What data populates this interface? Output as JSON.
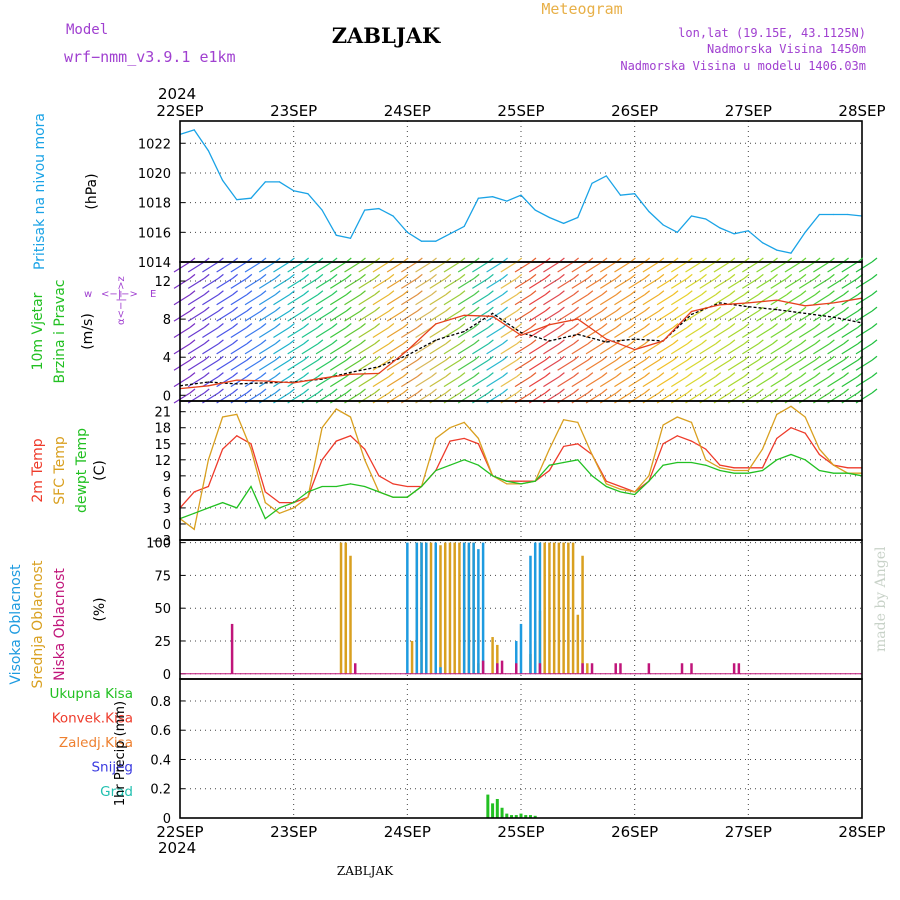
{
  "header": {
    "model_label": "Model",
    "model_name": "wrf−nmm_v3.9.1  e1km",
    "station": "ZABLJAK",
    "meteogram_label": "Meteogram",
    "coords": "lon,lat (19.15E, 43.1125N)",
    "elevation": "Nadmorska Visina 1450m",
    "model_elevation": "Nadmorska Visina u modelu 1406.03m",
    "year_top": "2024",
    "year_bottom": "2024",
    "footer_station": "ZABLJAK",
    "watermark": "made by Angel"
  },
  "colors": {
    "pressure": "#1aa3e6",
    "temp2m": "#ee3b2b",
    "sfc_temp": "#d9a020",
    "dewpoint": "#22c022",
    "high_cloud": "#1e9be0",
    "mid_cloud": "#d9a020",
    "low_cloud": "#c0157a",
    "precip_total": "#22c022",
    "wind_speed": "#000000",
    "wind_gust": "#e6401c",
    "model_text": "#a040d0",
    "meteogram_text": "#e8b048"
  },
  "chart_data": [
    {
      "id": "pressure",
      "type": "line",
      "ylabel_name": "Pritisak na nivou mora",
      "ylabel_unit": "(hPa)",
      "ylim": [
        1014,
        1023.5
      ],
      "yticks": [
        1014,
        1016,
        1018,
        1020,
        1022
      ],
      "grid": true,
      "series": [
        {
          "key": "slp",
          "x": [
            0,
            3,
            6,
            9,
            12,
            15,
            18,
            21,
            24,
            27,
            30,
            33,
            36,
            39,
            42,
            45,
            48,
            51,
            54,
            57,
            60,
            63,
            66,
            69,
            72,
            75,
            78,
            81,
            84,
            87,
            90,
            93,
            96,
            99,
            102,
            105,
            108,
            111,
            114,
            117,
            120,
            123,
            126,
            129,
            132,
            135,
            138,
            141,
            144
          ],
          "values": [
            1022.6,
            1022.9,
            1021.5,
            1019.5,
            1018.2,
            1018.3,
            1019.4,
            1019.4,
            1018.8,
            1018.6,
            1017.5,
            1015.8,
            1015.6,
            1017.5,
            1017.6,
            1017.1,
            1016.0,
            1015.4,
            1015.4,
            1015.9,
            1016.4,
            1018.3,
            1018.4,
            1018.1,
            1018.5,
            1017.5,
            1017.0,
            1016.6,
            1017.0,
            1019.3,
            1019.8,
            1018.5,
            1018.6,
            1017.4,
            1016.5,
            1016.0,
            1017.1,
            1016.9,
            1016.3,
            1015.9,
            1016.1,
            1015.3,
            1014.8,
            1014.6,
            1016.0,
            1017.2,
            1017.2,
            1017.2,
            1017.1
          ]
        }
      ]
    },
    {
      "id": "wind",
      "type": "line",
      "ylabel_name": "10m Vjetar Brzina i Pravac",
      "ylabel_unit": "(m/s)",
      "compass_vertical": "α<−|−>z",
      "compass_left": "w",
      "compass_mid": "<−|−>",
      "compass_right": "E",
      "ylim": [
        -0.6,
        14
      ],
      "yticks": [
        0,
        4,
        8,
        12
      ],
      "grid": true,
      "series": [
        {
          "key": "speed",
          "name": "",
          "x": [
            0,
            6,
            12,
            18,
            24,
            30,
            36,
            42,
            48,
            54,
            60,
            66,
            72,
            78,
            84,
            90,
            96,
            102,
            108,
            114,
            120,
            126,
            132,
            138,
            144
          ],
          "values": [
            1.0,
            1.4,
            1.2,
            1.3,
            1.4,
            1.7,
            2.4,
            3.0,
            4.2,
            5.8,
            6.7,
            8.6,
            6.6,
            5.7,
            6.4,
            5.6,
            5.9,
            5.7,
            8.5,
            9.7,
            9.3,
            9.0,
            8.6,
            8.2,
            7.6
          ]
        },
        {
          "key": "gust",
          "name": "",
          "x": [
            0,
            6,
            12,
            18,
            24,
            30,
            36,
            42,
            48,
            54,
            60,
            66,
            72,
            78,
            84,
            90,
            96,
            102,
            108,
            114,
            120,
            126,
            132,
            138,
            144
          ],
          "values": [
            0.7,
            1.0,
            1.6,
            1.5,
            1.3,
            1.8,
            2.2,
            2.3,
            4.7,
            7.5,
            8.4,
            8.3,
            6.3,
            7.4,
            8.0,
            5.9,
            4.8,
            5.7,
            8.8,
            9.5,
            9.7,
            10.0,
            9.4,
            9.7,
            10.2
          ]
        }
      ],
      "barbs": {
        "columns": [
          0,
          3,
          6,
          9,
          12,
          15,
          18,
          21,
          24,
          27,
          30,
          33,
          36,
          39,
          42,
          45,
          48,
          51,
          54,
          57,
          60,
          63,
          66,
          69,
          72,
          75,
          78,
          81,
          84,
          87,
          90,
          93,
          96,
          99,
          102,
          105,
          108,
          111,
          114,
          117,
          120,
          123,
          126,
          129,
          132,
          135,
          138,
          141,
          144
        ],
        "colors": [
          "#7a2fc4",
          "#6a3ad0",
          "#5a45dc",
          "#4a55e8",
          "#3e65ee",
          "#3a7aee",
          "#2a98e2",
          "#1cb2cc",
          "#1ac0b0",
          "#1ec58c",
          "#2ac860",
          "#3cc83a",
          "#60c832",
          "#a0c830",
          "#e8b830",
          "#e8a030",
          "#e09040",
          "#d8b858",
          "#c8c040",
          "#9ccd3a",
          "#4cc84c",
          "#22c0a0",
          "#28b8d0",
          "#e8c050",
          "#e86030",
          "#e84040",
          "#e04850",
          "#e86040",
          "#ec7038",
          "#ee8034",
          "#ee9030",
          "#ee9a2c",
          "#f0a02a",
          "#f0b028",
          "#f2c026",
          "#e8d02a",
          "#d8d82e",
          "#c8d82e",
          "#b8d82e",
          "#a8d82e",
          "#98d830",
          "#88d830",
          "#78d832",
          "#68d434",
          "#58d036",
          "#48cc38",
          "#38c83a",
          "#28c43c",
          "#20c040"
        ]
      }
    },
    {
      "id": "temperature",
      "type": "line",
      "ylabel_names": [
        "2m Temp",
        "SFC Temp",
        "dewpt Temp"
      ],
      "ylabel_unit": "(C)",
      "ylim": [
        -3,
        23
      ],
      "yticks": [
        -3,
        0,
        3,
        6,
        9,
        12,
        15,
        18,
        21
      ],
      "grid": true,
      "series": [
        {
          "key": "t2m",
          "x": [
            0,
            3,
            6,
            9,
            12,
            15,
            18,
            21,
            24,
            27,
            30,
            33,
            36,
            39,
            42,
            45,
            48,
            51,
            54,
            57,
            60,
            63,
            66,
            69,
            72,
            75,
            78,
            81,
            84,
            87,
            90,
            93,
            96,
            99,
            102,
            105,
            108,
            111,
            114,
            117,
            120,
            123,
            126,
            129,
            132,
            135,
            138,
            141,
            144
          ],
          "values": [
            3,
            6,
            7,
            14,
            16.5,
            15,
            6,
            4,
            4,
            5,
            12,
            15.5,
            16.5,
            14,
            9,
            7.5,
            7,
            7,
            10,
            15.5,
            16,
            15,
            9,
            8,
            8,
            8,
            10,
            14.5,
            15,
            13,
            8,
            7,
            6,
            8,
            15,
            16.5,
            15.5,
            14,
            11,
            10.5,
            10.5,
            10.5,
            16,
            18,
            17,
            13,
            11,
            10.5,
            10.5
          ]
        },
        {
          "key": "tsfc",
          "x": [
            0,
            3,
            6,
            9,
            12,
            15,
            18,
            21,
            24,
            27,
            30,
            33,
            36,
            39,
            42,
            45,
            48,
            51,
            54,
            57,
            60,
            63,
            66,
            69,
            72,
            75,
            78,
            81,
            84,
            87,
            90,
            93,
            96,
            99,
            102,
            105,
            108,
            111,
            114,
            117,
            120,
            123,
            126,
            129,
            132,
            135,
            138,
            141,
            144
          ],
          "values": [
            1,
            -1,
            12,
            20,
            20.5,
            14,
            4,
            2,
            3,
            5,
            18,
            21.5,
            20,
            12,
            6,
            5,
            5,
            7,
            16,
            18,
            19,
            16,
            9,
            7.5,
            7.5,
            8,
            14,
            19.5,
            19,
            13,
            7.5,
            6.5,
            6,
            9,
            18.5,
            20,
            19,
            12,
            10.5,
            10,
            10,
            14,
            20.5,
            22,
            20,
            14,
            11,
            9.5,
            9.5
          ]
        },
        {
          "key": "dewpt",
          "x": [
            0,
            3,
            6,
            9,
            12,
            15,
            18,
            21,
            24,
            27,
            30,
            33,
            36,
            39,
            42,
            45,
            48,
            51,
            54,
            57,
            60,
            63,
            66,
            69,
            72,
            75,
            78,
            81,
            84,
            87,
            90,
            93,
            96,
            99,
            102,
            105,
            108,
            111,
            114,
            117,
            120,
            123,
            126,
            129,
            132,
            135,
            138,
            141,
            144
          ],
          "values": [
            1,
            2,
            3,
            4,
            3,
            7,
            1,
            3,
            4,
            6,
            7,
            7,
            7.5,
            7,
            6,
            5,
            5,
            7,
            10,
            11,
            12,
            11,
            9,
            8,
            7.5,
            8,
            11,
            11.5,
            12,
            9,
            7,
            6,
            5.5,
            8,
            11,
            11.5,
            11.5,
            11,
            10,
            9.5,
            9.5,
            10,
            12,
            13,
            12,
            10,
            9.5,
            9.5,
            9
          ]
        }
      ]
    },
    {
      "id": "clouds",
      "type": "bar",
      "ylabel_names": [
        "Visoka Oblacnost",
        "Srednja Oblacnost",
        "Niska Oblacnost"
      ],
      "ylabel_unit": "(%)",
      "ylim": [
        -4,
        102
      ],
      "yticks": [
        0,
        25,
        50,
        75,
        100
      ],
      "grid": true,
      "high": {
        "x": [
          48,
          50,
          51,
          52,
          54,
          55,
          60,
          61,
          62,
          63,
          64,
          71,
          72,
          74,
          75,
          76
        ],
        "values": [
          100,
          100,
          100,
          100,
          100,
          5,
          100,
          100,
          100,
          95,
          100,
          25,
          38,
          90,
          100,
          100
        ]
      },
      "mid": {
        "x": [
          34,
          35,
          36,
          49,
          50,
          51,
          52,
          53,
          55,
          56,
          57,
          58,
          59,
          60,
          61,
          62,
          63,
          66,
          67,
          74,
          75,
          76,
          77,
          78,
          79,
          80,
          81,
          82,
          83,
          84,
          85,
          86
        ],
        "values": [
          100,
          100,
          90,
          25,
          100,
          100,
          100,
          100,
          98,
          100,
          100,
          100,
          100,
          100,
          98,
          100,
          8,
          28,
          22,
          15,
          25,
          48,
          100,
          100,
          100,
          100,
          100,
          100,
          100,
          45,
          90,
          8
        ]
      },
      "low": {
        "x": [
          11,
          37,
          64,
          67,
          68,
          71,
          76,
          85,
          87,
          92,
          93,
          99,
          106,
          108,
          117,
          118
        ],
        "values": [
          38,
          8,
          10,
          8,
          10,
          8,
          8,
          8,
          8,
          8,
          8,
          8,
          8,
          8,
          8,
          8
        ]
      }
    },
    {
      "id": "precip",
      "type": "bar",
      "ylabel_names": [
        "Ukupna Kisa",
        "Konvek.Kisa",
        "Zaledj.Kisa",
        "Snijeg",
        "Grad"
      ],
      "ylabel_unit": "1hr Precip (mm)",
      "ylim": [
        0,
        0.95
      ],
      "yticks": [
        0,
        0.2,
        0.4,
        0.6,
        0.8
      ],
      "grid": true,
      "total": {
        "x": [
          65,
          66,
          67,
          68,
          69,
          70,
          71,
          72,
          73,
          74,
          75
        ],
        "values": [
          0.16,
          0.1,
          0.13,
          0.07,
          0.03,
          0.02,
          0.02,
          0.03,
          0.02,
          0.02,
          0.015
        ]
      }
    }
  ],
  "time_axis": {
    "tick_labels": [
      "22SEP",
      "23SEP",
      "24SEP",
      "25SEP",
      "26SEP",
      "27SEP",
      "28SEP"
    ],
    "tick_hours": [
      0,
      24,
      48,
      72,
      96,
      120,
      144
    ],
    "xlim_hours": [
      0,
      144
    ]
  }
}
